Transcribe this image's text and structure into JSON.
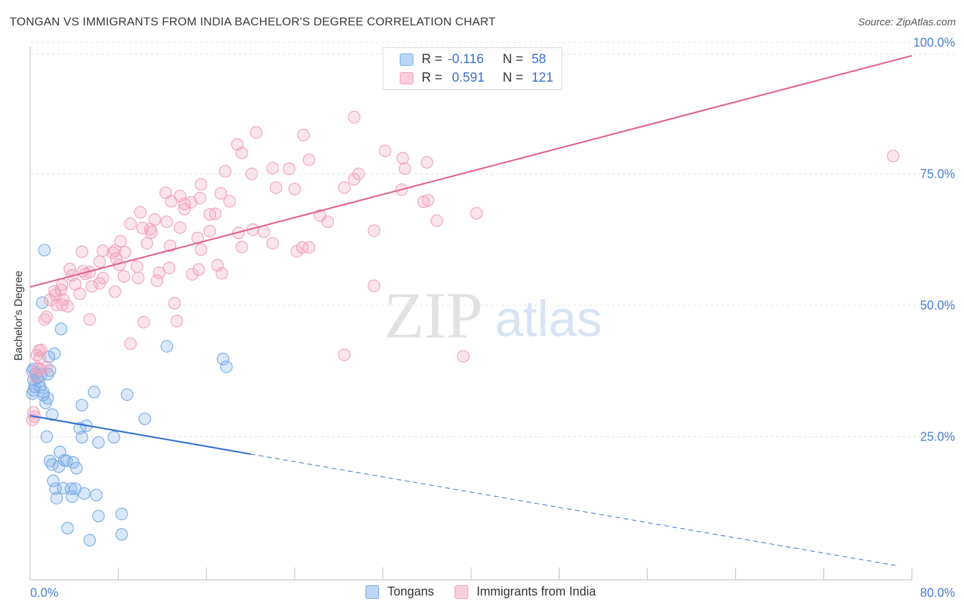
{
  "header": {
    "title": "TONGAN VS IMMIGRANTS FROM INDIA BACHELOR'S DEGREE CORRELATION CHART",
    "source": "Source: ZipAtlas.com"
  },
  "legend_top": {
    "rows": [
      {
        "r_label": "R =",
        "r_value": "-0.116",
        "n_label": "N =",
        "n_value": "58",
        "color": "#7aaee8"
      },
      {
        "r_label": "R =",
        "r_value": "0.591",
        "n_label": "N =",
        "n_value": "121",
        "color": "#f2a3bd"
      }
    ]
  },
  "legend_bottom": [
    {
      "label": "Tongans",
      "color": "#7aaee8"
    },
    {
      "label": "Immigrants from India",
      "color": "#f2a3bd"
    }
  ],
  "watermark": {
    "part1": "ZIP",
    "part2": "atlas"
  },
  "chart_data": {
    "type": "scatter",
    "xlabel": "",
    "ylabel": "Bachelor's Degree",
    "xlim": [
      0,
      80
    ],
    "ylim": [
      0,
      100
    ],
    "x_tick_labels": [
      "0.0%",
      "80.0%"
    ],
    "y_tick_labels": [
      "25.0%",
      "50.0%",
      "75.0%",
      "100.0%"
    ],
    "y_ticks": [
      25,
      50,
      75,
      100
    ],
    "grid": true,
    "series": [
      {
        "name": "Tongans",
        "color": "#7aaee8",
        "line_color": "#2f6fd0",
        "trend": {
          "x0": 0,
          "y0": 29.0,
          "x1": 20,
          "y1": 21.7,
          "dashed_to_x": 78.5,
          "dashed_to_y": 0.5
        },
        "points": [
          [
            1.3,
            60.5
          ],
          [
            1.1,
            50.5
          ],
          [
            2.8,
            45.5
          ],
          [
            12.4,
            42.2
          ],
          [
            2.2,
            40.8
          ],
          [
            1.7,
            40.2
          ],
          [
            17.5,
            39.8
          ],
          [
            17.8,
            38.3
          ],
          [
            0.3,
            37.9
          ],
          [
            0.5,
            37.0
          ],
          [
            1.8,
            37.6
          ],
          [
            1.0,
            36.8
          ],
          [
            0.8,
            35.5
          ],
          [
            0.4,
            34.5
          ],
          [
            0.3,
            33.8
          ],
          [
            0.2,
            33.2
          ],
          [
            1.2,
            33.5
          ],
          [
            5.8,
            33.5
          ],
          [
            8.8,
            33.0
          ],
          [
            1.6,
            32.3
          ],
          [
            1.4,
            31.4
          ],
          [
            4.7,
            31.0
          ],
          [
            2.0,
            29.2
          ],
          [
            10.4,
            28.4
          ],
          [
            5.1,
            27.1
          ],
          [
            4.5,
            26.6
          ],
          [
            4.7,
            24.9
          ],
          [
            6.2,
            23.9
          ],
          [
            7.6,
            24.9
          ],
          [
            1.5,
            25.0
          ],
          [
            2.7,
            22.1
          ],
          [
            1.8,
            20.4
          ],
          [
            3.1,
            20.5
          ],
          [
            3.3,
            20.4
          ],
          [
            3.9,
            20.1
          ],
          [
            2.0,
            19.7
          ],
          [
            2.6,
            19.3
          ],
          [
            4.2,
            19.0
          ],
          [
            2.1,
            16.6
          ],
          [
            2.3,
            15.1
          ],
          [
            3.0,
            15.2
          ],
          [
            3.7,
            15.1
          ],
          [
            4.1,
            15.1
          ],
          [
            2.4,
            13.3
          ],
          [
            3.8,
            13.6
          ],
          [
            4.9,
            14.2
          ],
          [
            6.0,
            13.9
          ],
          [
            6.2,
            9.9
          ],
          [
            8.3,
            10.3
          ],
          [
            3.4,
            7.6
          ],
          [
            5.4,
            5.3
          ],
          [
            8.3,
            6.4
          ],
          [
            0.3,
            35.8
          ],
          [
            1.2,
            32.9
          ],
          [
            0.7,
            36.2
          ],
          [
            0.2,
            37.5
          ],
          [
            0.9,
            34.4
          ],
          [
            1.6,
            36.9
          ]
        ]
      },
      {
        "name": "Immigrants from India",
        "color": "#f2a3bd",
        "line_color": "#e0628d",
        "trend": {
          "x0": 0,
          "y0": 53.5,
          "x1": 80,
          "y1": 97.5
        },
        "points": [
          [
            29.4,
            85.8
          ],
          [
            20.5,
            82.9
          ],
          [
            24.8,
            82.4
          ],
          [
            18.8,
            80.6
          ],
          [
            32.2,
            79.4
          ],
          [
            19.2,
            79.0
          ],
          [
            25.3,
            77.7
          ],
          [
            33.8,
            78.0
          ],
          [
            36.0,
            77.2
          ],
          [
            78.3,
            78.4
          ],
          [
            22.0,
            76.1
          ],
          [
            23.5,
            76.0
          ],
          [
            34.0,
            76.0
          ],
          [
            17.7,
            75.5
          ],
          [
            20.1,
            75.0
          ],
          [
            29.8,
            75.0
          ],
          [
            29.4,
            74.0
          ],
          [
            15.5,
            73.0
          ],
          [
            22.3,
            72.4
          ],
          [
            24.0,
            72.1
          ],
          [
            28.5,
            72.4
          ],
          [
            33.7,
            72.0
          ],
          [
            12.3,
            71.4
          ],
          [
            17.3,
            71.3
          ],
          [
            13.6,
            70.8
          ],
          [
            15.4,
            70.4
          ],
          [
            12.8,
            69.8
          ],
          [
            14.6,
            69.6
          ],
          [
            14.0,
            69.3
          ],
          [
            18.1,
            69.8
          ],
          [
            36.1,
            70.0
          ],
          [
            35.7,
            69.7
          ],
          [
            14.0,
            68.3
          ],
          [
            10.0,
            67.7
          ],
          [
            16.3,
            67.3
          ],
          [
            16.8,
            67.4
          ],
          [
            40.5,
            67.5
          ],
          [
            26.3,
            67.1
          ],
          [
            11.3,
            66.3
          ],
          [
            12.4,
            65.9
          ],
          [
            27.0,
            65.9
          ],
          [
            36.9,
            66.1
          ],
          [
            9.1,
            65.5
          ],
          [
            10.2,
            64.7
          ],
          [
            10.9,
            64.5
          ],
          [
            13.6,
            64.8
          ],
          [
            16.3,
            64.1
          ],
          [
            20.2,
            64.4
          ],
          [
            21.2,
            64.0
          ],
          [
            31.2,
            64.2
          ],
          [
            18.9,
            63.8
          ],
          [
            11.0,
            63.9
          ],
          [
            15.2,
            62.8
          ],
          [
            8.2,
            62.2
          ],
          [
            10.6,
            61.8
          ],
          [
            22.0,
            61.8
          ],
          [
            12.7,
            61.3
          ],
          [
            19.2,
            61.1
          ],
          [
            24.7,
            61.0
          ],
          [
            25.3,
            61.0
          ],
          [
            15.5,
            60.6
          ],
          [
            7.7,
            60.4
          ],
          [
            6.6,
            60.4
          ],
          [
            4.7,
            60.2
          ],
          [
            7.5,
            60.0
          ],
          [
            8.6,
            60.1
          ],
          [
            24.2,
            60.3
          ],
          [
            7.8,
            58.9
          ],
          [
            6.3,
            58.3
          ],
          [
            8.1,
            57.7
          ],
          [
            9.7,
            57.4
          ],
          [
            17.0,
            57.6
          ],
          [
            12.6,
            57.1
          ],
          [
            3.6,
            56.9
          ],
          [
            4.8,
            56.5
          ],
          [
            5.0,
            56.0
          ],
          [
            3.8,
            55.7
          ],
          [
            5.4,
            56.3
          ],
          [
            11.7,
            56.2
          ],
          [
            17.4,
            56.1
          ],
          [
            8.5,
            55.5
          ],
          [
            6.6,
            55.2
          ],
          [
            9.8,
            55.2
          ],
          [
            11.5,
            54.7
          ],
          [
            6.3,
            54.2
          ],
          [
            4.1,
            54.0
          ],
          [
            2.9,
            53.9
          ],
          [
            5.6,
            53.6
          ],
          [
            2.2,
            52.7
          ],
          [
            2.8,
            52.9
          ],
          [
            4.5,
            52.2
          ],
          [
            7.7,
            52.6
          ],
          [
            31.2,
            53.7
          ],
          [
            1.8,
            51.0
          ],
          [
            3.0,
            51.1
          ],
          [
            2.9,
            50.1
          ],
          [
            2.4,
            50.1
          ],
          [
            3.4,
            49.8
          ],
          [
            13.1,
            50.4
          ],
          [
            1.5,
            47.8
          ],
          [
            1.3,
            47.3
          ],
          [
            5.4,
            47.3
          ],
          [
            13.3,
            47.0
          ],
          [
            10.3,
            46.8
          ],
          [
            9.1,
            42.7
          ],
          [
            28.5,
            40.6
          ],
          [
            39.3,
            40.3
          ],
          [
            0.8,
            41.4
          ],
          [
            0.6,
            40.5
          ],
          [
            1.0,
            37.7
          ],
          [
            0.5,
            36.5
          ],
          [
            0.7,
            38.0
          ],
          [
            0.3,
            29.6
          ],
          [
            0.2,
            28.2
          ],
          [
            0.4,
            28.8
          ],
          [
            1.5,
            38.2
          ],
          [
            0.9,
            40.0
          ],
          [
            1.0,
            41.5
          ],
          [
            2.3,
            52.0
          ],
          [
            15.3,
            56.8
          ],
          [
            14.7,
            55.9
          ]
        ]
      }
    ]
  }
}
